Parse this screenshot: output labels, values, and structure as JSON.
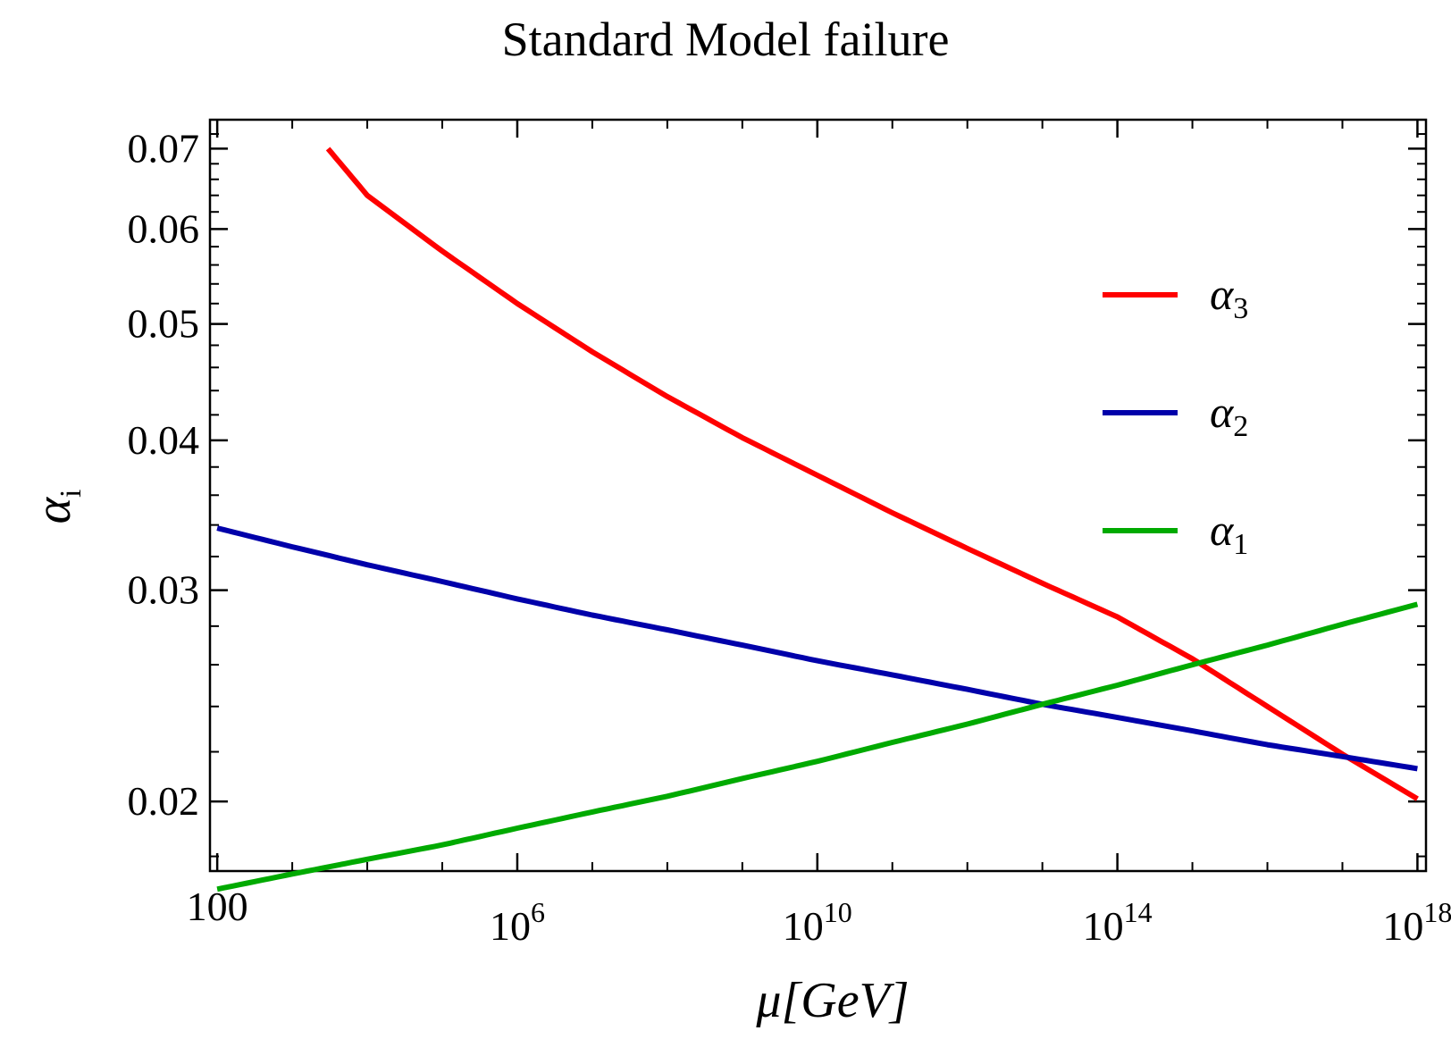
{
  "chart_data": {
    "type": "line",
    "title": "Standard Model failure",
    "xlabel": "μ[GeV]",
    "ylabel": {
      "base": "α",
      "sub": "i"
    },
    "x_scale": "log10",
    "y_scale": "log",
    "xlim": [
      80,
      1.3e+18
    ],
    "ylim": [
      0.0175,
      0.074
    ],
    "x_ticks": [
      {
        "value": 100,
        "label": "100",
        "base": "",
        "exp": ""
      },
      {
        "value": 1000000.0,
        "label": "",
        "base": "10",
        "exp": "6"
      },
      {
        "value": 10000000000.0,
        "label": "",
        "base": "10",
        "exp": "10"
      },
      {
        "value": 100000000000000.0,
        "label": "",
        "base": "10",
        "exp": "14"
      },
      {
        "value": 1e+18,
        "label": "",
        "base": "10",
        "exp": "18"
      }
    ],
    "y_ticks": [
      {
        "value": 0.02,
        "label": "0.02"
      },
      {
        "value": 0.03,
        "label": "0.03"
      },
      {
        "value": 0.04,
        "label": "0.04"
      },
      {
        "value": 0.05,
        "label": "0.05"
      },
      {
        "value": 0.06,
        "label": "0.06"
      },
      {
        "value": 0.07,
        "label": "0.07"
      }
    ],
    "legend_position": "right",
    "series": [
      {
        "name": "α3",
        "base": "α",
        "sub": "3",
        "color": "#ff0000",
        "x": [
          3000.0,
          10000.0,
          100000.0,
          1000000.0,
          10000000.0,
          100000000.0,
          1000000000.0,
          10000000000.0,
          100000000000.0,
          1000000000000.0,
          10000000000000.0,
          100000000000000.0,
          1000000000000000.0,
          1e+16,
          1e+17,
          1e+18
        ],
        "y": [
          0.07,
          0.064,
          0.0575,
          0.052,
          0.0474,
          0.0435,
          0.0402,
          0.0374,
          0.0348,
          0.0325,
          0.0304,
          0.0285,
          0.0263,
          0.024,
          0.0219,
          0.0201
        ]
      },
      {
        "name": "α2",
        "base": "α",
        "sub": "2",
        "color": "#0000aa",
        "x": [
          100,
          1000.0,
          10000.0,
          100000.0,
          1000000.0,
          10000000.0,
          100000000.0,
          1000000000.0,
          10000000000.0,
          100000000000.0,
          1000000000000.0,
          10000000000000.0,
          100000000000000.0,
          1000000000000000.0,
          1e+16,
          1e+17,
          1e+18
        ],
        "y": [
          0.0338,
          0.0326,
          0.0315,
          0.0305,
          0.0295,
          0.0286,
          0.0278,
          0.027,
          0.0262,
          0.0255,
          0.0248,
          0.0241,
          0.0235,
          0.0229,
          0.0223,
          0.0218,
          0.0213
        ]
      },
      {
        "name": "α1",
        "base": "α",
        "sub": "1",
        "color": "#00aa00",
        "x": [
          100,
          1000.0,
          10000.0,
          100000.0,
          1000000.0,
          10000000.0,
          100000000.0,
          1000000000.0,
          10000000000.0,
          100000000000.0,
          1000000000000.0,
          10000000000000.0,
          100000000000000.0,
          1000000000000000.0,
          1e+16,
          1e+17,
          1e+18
        ],
        "y": [
          0.0169,
          0.0174,
          0.0179,
          0.0184,
          0.019,
          0.0196,
          0.0202,
          0.0209,
          0.0216,
          0.0224,
          0.0232,
          0.0241,
          0.025,
          0.026,
          0.027,
          0.0281,
          0.0292
        ]
      }
    ]
  }
}
